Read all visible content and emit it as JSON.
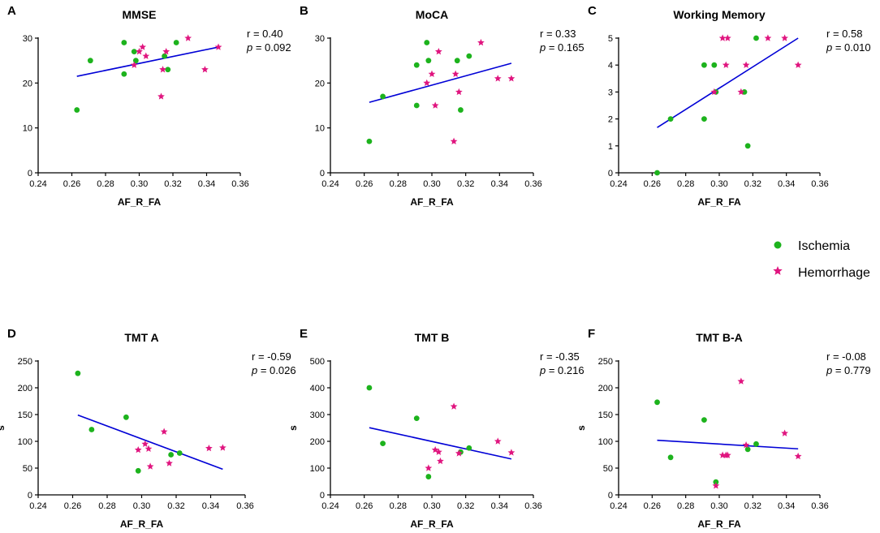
{
  "legend": {
    "ischemia": {
      "label": "Ischemia",
      "color": "#1db31d",
      "marker": "circle"
    },
    "hemorrhage": {
      "label": "Hemorrhage",
      "color": "#e0157f",
      "marker": "star"
    }
  },
  "fit_line_color": "#0000d6",
  "chart_data": [
    {
      "panel": "A",
      "type": "scatter",
      "title": "MMSE",
      "xlabel": "AF_R_FA",
      "ylabel": "",
      "xlim": [
        0.24,
        0.36
      ],
      "xticks": [
        0.24,
        0.26,
        0.28,
        0.3,
        0.32,
        0.34,
        0.36
      ],
      "ylim": [
        0,
        30
      ],
      "yticks": [
        0,
        10,
        20,
        30
      ],
      "stats": {
        "r_label": "r = ",
        "r": "0.40",
        "p_label": "p",
        "p": "= 0.092"
      },
      "fit": {
        "x": [
          0.263,
          0.347
        ],
        "y": [
          21.5,
          28.0
        ]
      },
      "series": [
        {
          "name": "Ischemia",
          "points": [
            [
              0.263,
              14
            ],
            [
              0.271,
              25
            ],
            [
              0.291,
              29
            ],
            [
              0.291,
              22
            ],
            [
              0.297,
              27
            ],
            [
              0.298,
              25
            ],
            [
              0.315,
              26
            ],
            [
              0.317,
              23
            ],
            [
              0.322,
              29
            ]
          ]
        },
        {
          "name": "Hemorrhage",
          "points": [
            [
              0.297,
              24
            ],
            [
              0.3,
              27
            ],
            [
              0.302,
              28
            ],
            [
              0.304,
              26
            ],
            [
              0.313,
              17
            ],
            [
              0.314,
              23
            ],
            [
              0.316,
              27
            ],
            [
              0.329,
              30
            ],
            [
              0.339,
              23
            ],
            [
              0.347,
              28
            ]
          ]
        }
      ]
    },
    {
      "panel": "B",
      "type": "scatter",
      "title": "MoCA",
      "xlabel": "AF_R_FA",
      "ylabel": "",
      "xlim": [
        0.24,
        0.36
      ],
      "xticks": [
        0.24,
        0.26,
        0.28,
        0.3,
        0.32,
        0.34,
        0.36
      ],
      "ylim": [
        0,
        30
      ],
      "yticks": [
        0,
        10,
        20,
        30
      ],
      "stats": {
        "r_label": "r = ",
        "r": "0.33",
        "p_label": "p",
        "p": "= 0.165"
      },
      "fit": {
        "x": [
          0.263,
          0.347
        ],
        "y": [
          15.7,
          24.4
        ]
      },
      "series": [
        {
          "name": "Ischemia",
          "points": [
            [
              0.263,
              7
            ],
            [
              0.271,
              17
            ],
            [
              0.291,
              24
            ],
            [
              0.291,
              15
            ],
            [
              0.297,
              29
            ],
            [
              0.298,
              25
            ],
            [
              0.315,
              25
            ],
            [
              0.317,
              14
            ],
            [
              0.322,
              26
            ]
          ]
        },
        {
          "name": "Hemorrhage",
          "points": [
            [
              0.297,
              20
            ],
            [
              0.3,
              22
            ],
            [
              0.302,
              15
            ],
            [
              0.304,
              27
            ],
            [
              0.313,
              7
            ],
            [
              0.314,
              22
            ],
            [
              0.316,
              18
            ],
            [
              0.329,
              29
            ],
            [
              0.339,
              21
            ],
            [
              0.347,
              21
            ]
          ]
        }
      ]
    },
    {
      "panel": "C",
      "type": "scatter",
      "title": "Working Memory",
      "xlabel": "AF_R_FA",
      "ylabel": "",
      "xlim": [
        0.24,
        0.36
      ],
      "xticks": [
        0.24,
        0.26,
        0.28,
        0.3,
        0.32,
        0.34,
        0.36
      ],
      "ylim": [
        0,
        5
      ],
      "yticks": [
        0,
        1,
        2,
        3,
        4,
        5
      ],
      "stats": {
        "r_label": "r = ",
        "r": "0.58",
        "p_label": "p",
        "p": "= 0.010"
      },
      "fit": {
        "x": [
          0.263,
          0.347
        ],
        "y": [
          1.68,
          5.0
        ]
      },
      "series": [
        {
          "name": "Ischemia",
          "points": [
            [
              0.263,
              0
            ],
            [
              0.271,
              2
            ],
            [
              0.291,
              4
            ],
            [
              0.291,
              2
            ],
            [
              0.297,
              4
            ],
            [
              0.298,
              3
            ],
            [
              0.315,
              3
            ],
            [
              0.317,
              1
            ],
            [
              0.322,
              5
            ]
          ]
        },
        {
          "name": "Hemorrhage",
          "points": [
            [
              0.297,
              3
            ],
            [
              0.302,
              5
            ],
            [
              0.304,
              4
            ],
            [
              0.305,
              5
            ],
            [
              0.313,
              3
            ],
            [
              0.316,
              4
            ],
            [
              0.329,
              5
            ],
            [
              0.339,
              5
            ],
            [
              0.347,
              4
            ]
          ]
        }
      ]
    },
    {
      "panel": "D",
      "type": "scatter",
      "title": "TMT A",
      "xlabel": "AF_R_FA",
      "ylabel": "s",
      "xlim": [
        0.24,
        0.36
      ],
      "xticks": [
        0.24,
        0.26,
        0.28,
        0.3,
        0.32,
        0.34,
        0.36
      ],
      "ylim": [
        0,
        250
      ],
      "yticks": [
        0,
        50,
        100,
        150,
        200,
        250
      ],
      "stats": {
        "r_label": "r = ",
        "r": "-0.59",
        "p_label": "p",
        "p": "= 0.026"
      },
      "fit": {
        "x": [
          0.263,
          0.347
        ],
        "y": [
          149,
          48
        ]
      },
      "series": [
        {
          "name": "Ischemia",
          "points": [
            [
              0.263,
              227
            ],
            [
              0.271,
              122
            ],
            [
              0.291,
              145
            ],
            [
              0.298,
              45
            ],
            [
              0.317,
              75
            ],
            [
              0.322,
              78
            ]
          ]
        },
        {
          "name": "Hemorrhage",
          "points": [
            [
              0.298,
              84
            ],
            [
              0.302,
              95
            ],
            [
              0.304,
              86
            ],
            [
              0.305,
              53
            ],
            [
              0.313,
              118
            ],
            [
              0.316,
              59
            ],
            [
              0.339,
              87
            ],
            [
              0.347,
              88
            ]
          ]
        }
      ]
    },
    {
      "panel": "E",
      "type": "scatter",
      "title": "TMT B",
      "xlabel": "AF_R_FA",
      "ylabel": "s",
      "xlim": [
        0.24,
        0.36
      ],
      "xticks": [
        0.24,
        0.26,
        0.28,
        0.3,
        0.32,
        0.34,
        0.36
      ],
      "ylim": [
        0,
        500
      ],
      "yticks": [
        0,
        100,
        200,
        300,
        400,
        500
      ],
      "stats": {
        "r_label": "r = ",
        "r": "-0.35",
        "p_label": "p",
        "p": "= 0.216"
      },
      "fit": {
        "x": [
          0.263,
          0.347
        ],
        "y": [
          251,
          134
        ]
      },
      "series": [
        {
          "name": "Ischemia",
          "points": [
            [
              0.263,
              400
            ],
            [
              0.271,
              192
            ],
            [
              0.291,
              286
            ],
            [
              0.298,
              68
            ],
            [
              0.317,
              160
            ],
            [
              0.322,
              175
            ]
          ]
        },
        {
          "name": "Hemorrhage",
          "points": [
            [
              0.298,
              100
            ],
            [
              0.302,
              168
            ],
            [
              0.304,
              160
            ],
            [
              0.305,
              126
            ],
            [
              0.313,
              330
            ],
            [
              0.316,
              155
            ],
            [
              0.339,
              200
            ],
            [
              0.347,
              158
            ]
          ]
        }
      ]
    },
    {
      "panel": "F",
      "type": "scatter",
      "title": "TMT B-A",
      "xlabel": "AF_R_FA",
      "ylabel": "s",
      "xlim": [
        0.24,
        0.36
      ],
      "xticks": [
        0.24,
        0.26,
        0.28,
        0.3,
        0.32,
        0.34,
        0.36
      ],
      "ylim": [
        0,
        250
      ],
      "yticks": [
        0,
        50,
        100,
        150,
        200,
        250
      ],
      "stats": {
        "r_label": "r = ",
        "r": "-0.08",
        "p_label": "p",
        "p": "= 0.779"
      },
      "fit": {
        "x": [
          0.263,
          0.347
        ],
        "y": [
          102,
          86
        ]
      },
      "series": [
        {
          "name": "Ischemia",
          "points": [
            [
              0.263,
              173
            ],
            [
              0.271,
              70
            ],
            [
              0.291,
              140
            ],
            [
              0.298,
              24
            ],
            [
              0.317,
              85
            ],
            [
              0.322,
              95
            ]
          ]
        },
        {
          "name": "Hemorrhage",
          "points": [
            [
              0.298,
              17
            ],
            [
              0.302,
              74
            ],
            [
              0.304,
              74
            ],
            [
              0.305,
              74
            ],
            [
              0.313,
              212
            ],
            [
              0.316,
              93
            ],
            [
              0.339,
              115
            ],
            [
              0.347,
              72
            ]
          ]
        }
      ]
    }
  ]
}
